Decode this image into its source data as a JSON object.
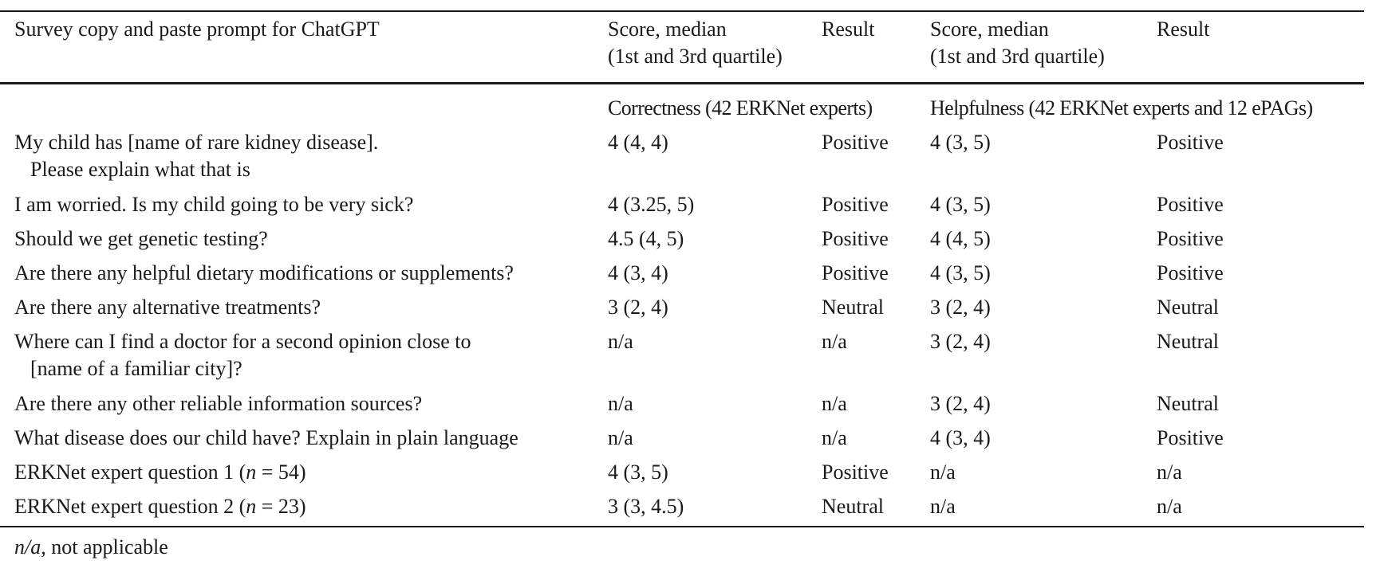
{
  "header": {
    "question": "Survey copy and paste prompt for ChatGPT",
    "score_line1": "Score, median",
    "score_line2": "(1st and 3rd quartile)",
    "result": "Result"
  },
  "groups": {
    "correctness": "Correctness (42 ERKNet experts)",
    "helpfulness": "Helpfulness (42 ERKNet experts and 12 ePAGs)"
  },
  "rows": [
    {
      "q1": "My child has [name of rare kidney disease].",
      "q2": "Please explain what that is",
      "c_score": "4 (4, 4)",
      "c_result": "Positive",
      "h_score": "4 (3, 5)",
      "h_result": "Positive"
    },
    {
      "q1": "I am worried. Is my child going to be very sick?",
      "q2": "",
      "c_score": "4 (3.25, 5)",
      "c_result": "Positive",
      "h_score": "4 (3, 5)",
      "h_result": "Positive"
    },
    {
      "q1": "Should we get genetic testing?",
      "q2": "",
      "c_score": "4.5 (4, 5)",
      "c_result": "Positive",
      "h_score": "4 (4, 5)",
      "h_result": "Positive"
    },
    {
      "q1": "Are there any helpful dietary modifications or supplements?",
      "q2": "",
      "c_score": "4 (3, 4)",
      "c_result": "Positive",
      "h_score": "4 (3, 5)",
      "h_result": "Positive"
    },
    {
      "q1": "Are there any alternative treatments?",
      "q2": "",
      "c_score": "3 (2, 4)",
      "c_result": "Neutral",
      "h_score": "3 (2, 4)",
      "h_result": "Neutral"
    },
    {
      "q1": "Where can I find a doctor for a second opinion close to",
      "q2": "[name of a familiar city]?",
      "c_score": "n/a",
      "c_result": "n/a",
      "h_score": "3 (2, 4)",
      "h_result": "Neutral"
    },
    {
      "q1": "Are there any other reliable information sources?",
      "q2": "",
      "c_score": "n/a",
      "c_result": "n/a",
      "h_score": "3 (2, 4)",
      "h_result": "Neutral"
    },
    {
      "q1": "What disease does our child have? Explain in plain language",
      "q2": "",
      "c_score": "n/a",
      "c_result": "n/a",
      "h_score": "4 (3, 4)",
      "h_result": "Positive"
    },
    {
      "q_prefix": "ERKNet expert question 1 (",
      "q_var": "n",
      "q_suffix": " = 54)",
      "c_score": "4 (3, 5)",
      "c_result": "Positive",
      "h_score": "n/a",
      "h_result": "n/a"
    },
    {
      "q_prefix": "ERKNet expert question 2 (",
      "q_var": "n",
      "q_suffix": " = 23)",
      "c_score": "3 (3, 4.5)",
      "c_result": "Neutral",
      "h_score": "n/a",
      "h_result": "n/a"
    }
  ],
  "footnote": {
    "abbr": "n/a",
    "text": ", not applicable"
  }
}
